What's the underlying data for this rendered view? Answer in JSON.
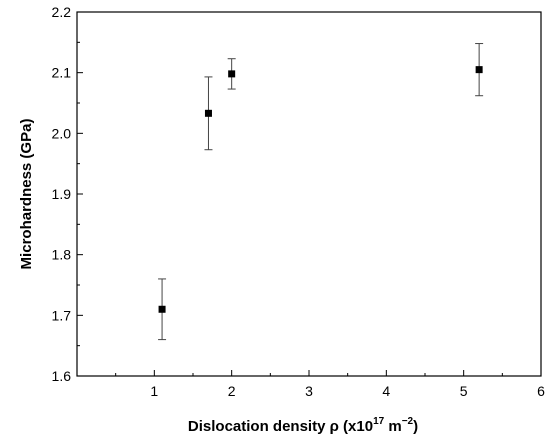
{
  "chart_data": {
    "type": "scatter",
    "title": "",
    "xlabel_main": "Dislocation density ρ (x10",
    "xlabel_exp1": "17",
    "xlabel_mid": " m",
    "xlabel_exp2": "−2",
    "xlabel_end": ")",
    "ylabel": "Microhardness (GPa)",
    "xlim": [
      0,
      6
    ],
    "ylim": [
      1.6,
      2.2
    ],
    "xticks": [
      1,
      2,
      3,
      4,
      5,
      6
    ],
    "xtick_labels": [
      "1",
      "2",
      "3",
      "4",
      "5",
      "6"
    ],
    "yticks": [
      1.6,
      1.7,
      1.8,
      1.9,
      2.0,
      2.1,
      2.2
    ],
    "ytick_labels": [
      "1.6",
      "1.7",
      "1.8",
      "1.9",
      "2.0",
      "2.1",
      "2.2"
    ],
    "grid": false,
    "series": [
      {
        "x": [
          1.1,
          1.7,
          2.0,
          5.2
        ],
        "y": [
          1.71,
          2.033,
          2.098,
          2.105
        ],
        "yerr_low": [
          0.05,
          0.06,
          0.025,
          0.043
        ],
        "yerr_high": [
          0.05,
          0.06,
          0.025,
          0.043
        ],
        "marker": "square",
        "color": "#000000"
      }
    ]
  }
}
